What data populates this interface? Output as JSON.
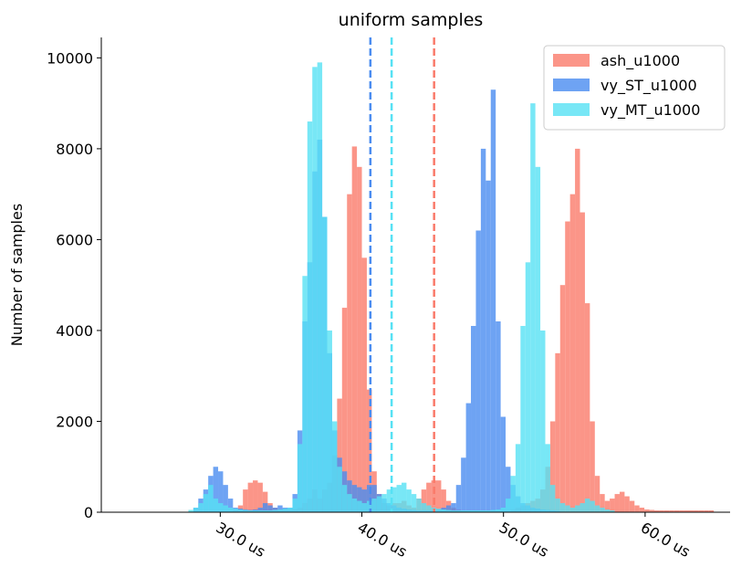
{
  "chart_data": {
    "type": "histogram",
    "title": "uniform samples",
    "xlabel": "",
    "ylabel": "Number of samples",
    "xlim": [
      21.6,
      66.0
    ],
    "ylim": [
      0,
      10450
    ],
    "x_ticks": [
      30,
      40,
      50,
      60
    ],
    "x_tick_labels": [
      "30.0 us",
      "40.0 us",
      "50.0 us",
      "60.0 us"
    ],
    "y_ticks": [
      0,
      2000,
      4000,
      6000,
      8000,
      10000
    ],
    "y_tick_labels": [
      "0",
      "2000",
      "4000",
      "6000",
      "8000",
      "10000"
    ],
    "bin_width": 0.35,
    "legend_position": "upper right",
    "series": [
      {
        "name": "ash_u1000",
        "color": "#fa7a6a",
        "mean_line": 45.1,
        "bins": [
          [
            30.9,
            50
          ],
          [
            31.25,
            150
          ],
          [
            31.6,
            500
          ],
          [
            31.95,
            650
          ],
          [
            32.3,
            700
          ],
          [
            32.65,
            650
          ],
          [
            33.0,
            450
          ],
          [
            33.35,
            200
          ],
          [
            33.7,
            100
          ],
          [
            34.05,
            60
          ],
          [
            34.4,
            80
          ],
          [
            34.75,
            50
          ],
          [
            35.1,
            60
          ],
          [
            35.45,
            100
          ],
          [
            35.8,
            200
          ],
          [
            36.15,
            300
          ],
          [
            36.5,
            500
          ],
          [
            36.85,
            300
          ],
          [
            37.2,
            500
          ],
          [
            37.55,
            650
          ],
          [
            37.9,
            1250
          ],
          [
            38.25,
            2500
          ],
          [
            38.6,
            4500
          ],
          [
            38.95,
            7000
          ],
          [
            39.3,
            8050
          ],
          [
            39.65,
            7600
          ],
          [
            40.0,
            5600
          ],
          [
            40.35,
            2700
          ],
          [
            40.7,
            900
          ],
          [
            41.05,
            400
          ],
          [
            41.4,
            200
          ],
          [
            41.75,
            150
          ],
          [
            42.1,
            200
          ],
          [
            42.45,
            200
          ],
          [
            42.8,
            250
          ],
          [
            43.15,
            150
          ],
          [
            43.5,
            100
          ],
          [
            43.85,
            300
          ],
          [
            44.2,
            500
          ],
          [
            44.55,
            650
          ],
          [
            44.9,
            700
          ],
          [
            45.25,
            700
          ],
          [
            45.6,
            500
          ],
          [
            45.95,
            250
          ],
          [
            46.3,
            100
          ],
          [
            46.65,
            50
          ],
          [
            47.0,
            30
          ],
          [
            47.35,
            20
          ],
          [
            50.5,
            50
          ],
          [
            50.85,
            100
          ],
          [
            51.2,
            150
          ],
          [
            51.55,
            200
          ],
          [
            51.9,
            250
          ],
          [
            52.25,
            300
          ],
          [
            52.6,
            500
          ],
          [
            52.95,
            1000
          ],
          [
            53.3,
            2000
          ],
          [
            53.65,
            3500
          ],
          [
            54.0,
            5000
          ],
          [
            54.35,
            6400
          ],
          [
            54.7,
            7000
          ],
          [
            55.05,
            8000
          ],
          [
            55.4,
            6600
          ],
          [
            55.75,
            4600
          ],
          [
            56.1,
            2000
          ],
          [
            56.45,
            800
          ],
          [
            56.8,
            400
          ],
          [
            57.15,
            250
          ],
          [
            57.5,
            300
          ],
          [
            57.85,
            400
          ],
          [
            58.2,
            450
          ],
          [
            58.55,
            350
          ],
          [
            58.9,
            250
          ],
          [
            59.25,
            150
          ],
          [
            59.6,
            100
          ],
          [
            59.95,
            60
          ],
          [
            60.3,
            50
          ],
          [
            60.65,
            40
          ],
          [
            61.0,
            40
          ],
          [
            61.35,
            40
          ],
          [
            61.7,
            40
          ],
          [
            62.05,
            40
          ],
          [
            62.4,
            40
          ],
          [
            62.75,
            40
          ],
          [
            63.1,
            40
          ],
          [
            63.45,
            40
          ],
          [
            63.8,
            40
          ],
          [
            64.15,
            40
          ],
          [
            64.5,
            40
          ]
        ]
      },
      {
        "name": "vy_ST_u1000",
        "color": "#4a8cf0",
        "mean_line": 40.6,
        "bins": [
          [
            28.1,
            100
          ],
          [
            28.45,
            300
          ],
          [
            28.8,
            500
          ],
          [
            29.15,
            800
          ],
          [
            29.5,
            1000
          ],
          [
            29.85,
            900
          ],
          [
            30.2,
            600
          ],
          [
            30.55,
            300
          ],
          [
            30.9,
            100
          ],
          [
            31.25,
            80
          ],
          [
            31.6,
            60
          ],
          [
            31.95,
            50
          ],
          [
            32.3,
            60
          ],
          [
            32.65,
            100
          ],
          [
            33.0,
            200
          ],
          [
            33.35,
            150
          ],
          [
            33.7,
            100
          ],
          [
            34.05,
            150
          ],
          [
            34.4,
            100
          ],
          [
            34.75,
            100
          ],
          [
            35.1,
            400
          ],
          [
            35.45,
            1800
          ],
          [
            35.8,
            4200
          ],
          [
            36.15,
            5500
          ],
          [
            36.5,
            7500
          ],
          [
            36.85,
            8200
          ],
          [
            37.2,
            6500
          ],
          [
            37.55,
            3500
          ],
          [
            37.9,
            1800
          ],
          [
            38.25,
            1200
          ],
          [
            38.6,
            900
          ],
          [
            38.95,
            700
          ],
          [
            39.3,
            600
          ],
          [
            39.65,
            550
          ],
          [
            40.0,
            500
          ],
          [
            40.35,
            600
          ],
          [
            40.7,
            600
          ],
          [
            41.05,
            400
          ],
          [
            41.4,
            300
          ],
          [
            41.75,
            200
          ],
          [
            42.1,
            150
          ],
          [
            42.45,
            100
          ],
          [
            42.8,
            80
          ],
          [
            43.15,
            60
          ],
          [
            43.5,
            50
          ],
          [
            43.85,
            40
          ],
          [
            44.2,
            40
          ],
          [
            44.55,
            40
          ],
          [
            44.9,
            40
          ],
          [
            45.25,
            60
          ],
          [
            45.6,
            100
          ],
          [
            45.95,
            150
          ],
          [
            46.3,
            200
          ],
          [
            46.65,
            600
          ],
          [
            47.0,
            1200
          ],
          [
            47.35,
            2400
          ],
          [
            47.7,
            4100
          ],
          [
            48.05,
            6200
          ],
          [
            48.4,
            8000
          ],
          [
            48.75,
            7300
          ],
          [
            49.1,
            9300
          ],
          [
            49.45,
            4200
          ],
          [
            49.8,
            2100
          ],
          [
            50.15,
            1000
          ],
          [
            50.5,
            600
          ],
          [
            50.85,
            350
          ],
          [
            51.2,
            200
          ],
          [
            51.55,
            150
          ],
          [
            51.9,
            100
          ],
          [
            52.25,
            80
          ],
          [
            52.6,
            60
          ],
          [
            52.95,
            50
          ],
          [
            53.3,
            40
          ],
          [
            53.65,
            30
          ]
        ]
      },
      {
        "name": "vy_MT_u1000",
        "color": "#56e1f4",
        "mean_line": 42.1,
        "bins": [
          [
            27.75,
            50
          ],
          [
            28.1,
            100
          ],
          [
            28.45,
            200
          ],
          [
            28.8,
            400
          ],
          [
            29.15,
            600
          ],
          [
            29.5,
            300
          ],
          [
            29.85,
            200
          ],
          [
            30.2,
            150
          ],
          [
            30.55,
            100
          ],
          [
            30.9,
            80
          ],
          [
            31.25,
            60
          ],
          [
            31.6,
            50
          ],
          [
            31.95,
            40
          ],
          [
            32.3,
            40
          ],
          [
            32.65,
            40
          ],
          [
            33.0,
            40
          ],
          [
            33.35,
            40
          ],
          [
            33.7,
            50
          ],
          [
            34.05,
            60
          ],
          [
            34.4,
            80
          ],
          [
            34.75,
            100
          ],
          [
            35.1,
            300
          ],
          [
            35.45,
            1500
          ],
          [
            35.8,
            5200
          ],
          [
            36.15,
            8600
          ],
          [
            36.5,
            9800
          ],
          [
            36.85,
            9900
          ],
          [
            37.2,
            6500
          ],
          [
            37.55,
            4000
          ],
          [
            37.9,
            2000
          ],
          [
            38.25,
            1000
          ],
          [
            38.6,
            600
          ],
          [
            38.95,
            400
          ],
          [
            39.3,
            300
          ],
          [
            39.65,
            250
          ],
          [
            40.0,
            200
          ],
          [
            40.35,
            250
          ],
          [
            40.7,
            300
          ],
          [
            41.05,
            350
          ],
          [
            41.4,
            400
          ],
          [
            41.75,
            500
          ],
          [
            42.1,
            550
          ],
          [
            42.45,
            600
          ],
          [
            42.8,
            650
          ],
          [
            43.15,
            500
          ],
          [
            43.5,
            400
          ],
          [
            43.85,
            300
          ],
          [
            44.2,
            200
          ],
          [
            44.55,
            150
          ],
          [
            44.9,
            100
          ],
          [
            45.25,
            80
          ],
          [
            45.6,
            60
          ],
          [
            45.95,
            50
          ],
          [
            46.3,
            40
          ],
          [
            46.65,
            40
          ],
          [
            47.0,
            40
          ],
          [
            47.35,
            40
          ],
          [
            47.7,
            40
          ],
          [
            48.05,
            40
          ],
          [
            48.4,
            40
          ],
          [
            48.75,
            40
          ],
          [
            49.1,
            50
          ],
          [
            49.45,
            60
          ],
          [
            49.8,
            100
          ],
          [
            50.15,
            300
          ],
          [
            50.5,
            800
          ],
          [
            50.85,
            1500
          ],
          [
            51.2,
            4100
          ],
          [
            51.55,
            5500
          ],
          [
            51.9,
            9000
          ],
          [
            52.25,
            7600
          ],
          [
            52.6,
            4000
          ],
          [
            52.95,
            1500
          ],
          [
            53.3,
            600
          ],
          [
            53.65,
            300
          ],
          [
            54.0,
            200
          ],
          [
            54.35,
            150
          ],
          [
            54.7,
            100
          ],
          [
            55.05,
            150
          ],
          [
            55.4,
            200
          ],
          [
            55.75,
            300
          ],
          [
            56.1,
            250
          ],
          [
            56.45,
            150
          ],
          [
            56.8,
            100
          ],
          [
            57.15,
            60
          ],
          [
            57.5,
            40
          ]
        ]
      }
    ]
  }
}
